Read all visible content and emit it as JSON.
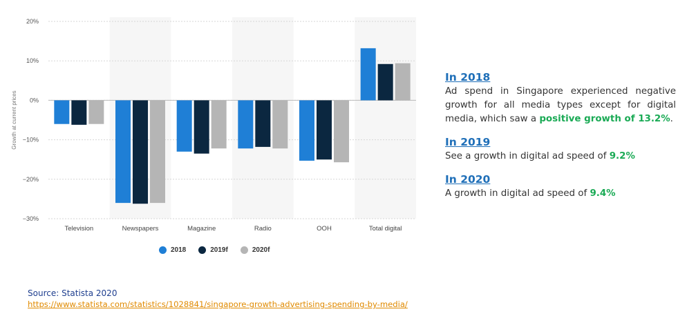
{
  "chart_data": {
    "type": "bar",
    "categories": [
      "Television",
      "Newspapers",
      "Magazine",
      "Radio",
      "OOH",
      "Total digital"
    ],
    "series": [
      {
        "name": "2018",
        "color": "#1f7fd6",
        "values": [
          -6.0,
          -26.0,
          -13.0,
          -12.2,
          -15.3,
          13.2
        ]
      },
      {
        "name": "2019f",
        "color": "#0b2740",
        "values": [
          -6.2,
          -26.2,
          -13.5,
          -11.8,
          -15.0,
          9.2
        ]
      },
      {
        "name": "2020f",
        "color": "#b5b5b5",
        "values": [
          -6.0,
          -26.0,
          -12.2,
          -12.2,
          -15.7,
          9.4
        ]
      }
    ],
    "ylabel": "Growth at current prices",
    "ylim": [
      -30,
      20
    ],
    "yticks": [
      20,
      10,
      0,
      -10,
      -20,
      -30
    ],
    "ytick_labels": [
      "20%",
      "10%",
      "0%",
      "−10%",
      "−20%",
      "−30%"
    ],
    "grid": true,
    "legend_position": "bottom-center"
  },
  "notes": [
    {
      "year": "In 2018",
      "text": "Ad spend in Singapore experienced negative growth for all media types except for digital media, which saw a ",
      "highlight": "positive growth of 13.2%",
      "suffix": "."
    },
    {
      "year": "In 2019",
      "text": "See a growth in digital ad speed of ",
      "highlight": "9.2%",
      "suffix": ""
    },
    {
      "year": "In 2020",
      "text": "A growth in digital ad speed of ",
      "highlight": "9.4%",
      "suffix": ""
    }
  ],
  "source": {
    "label": "Source: Statista 2020",
    "url": "https://www.statista.com/statistics/1028841/singapore-growth-advertising-spending-by-media/"
  }
}
